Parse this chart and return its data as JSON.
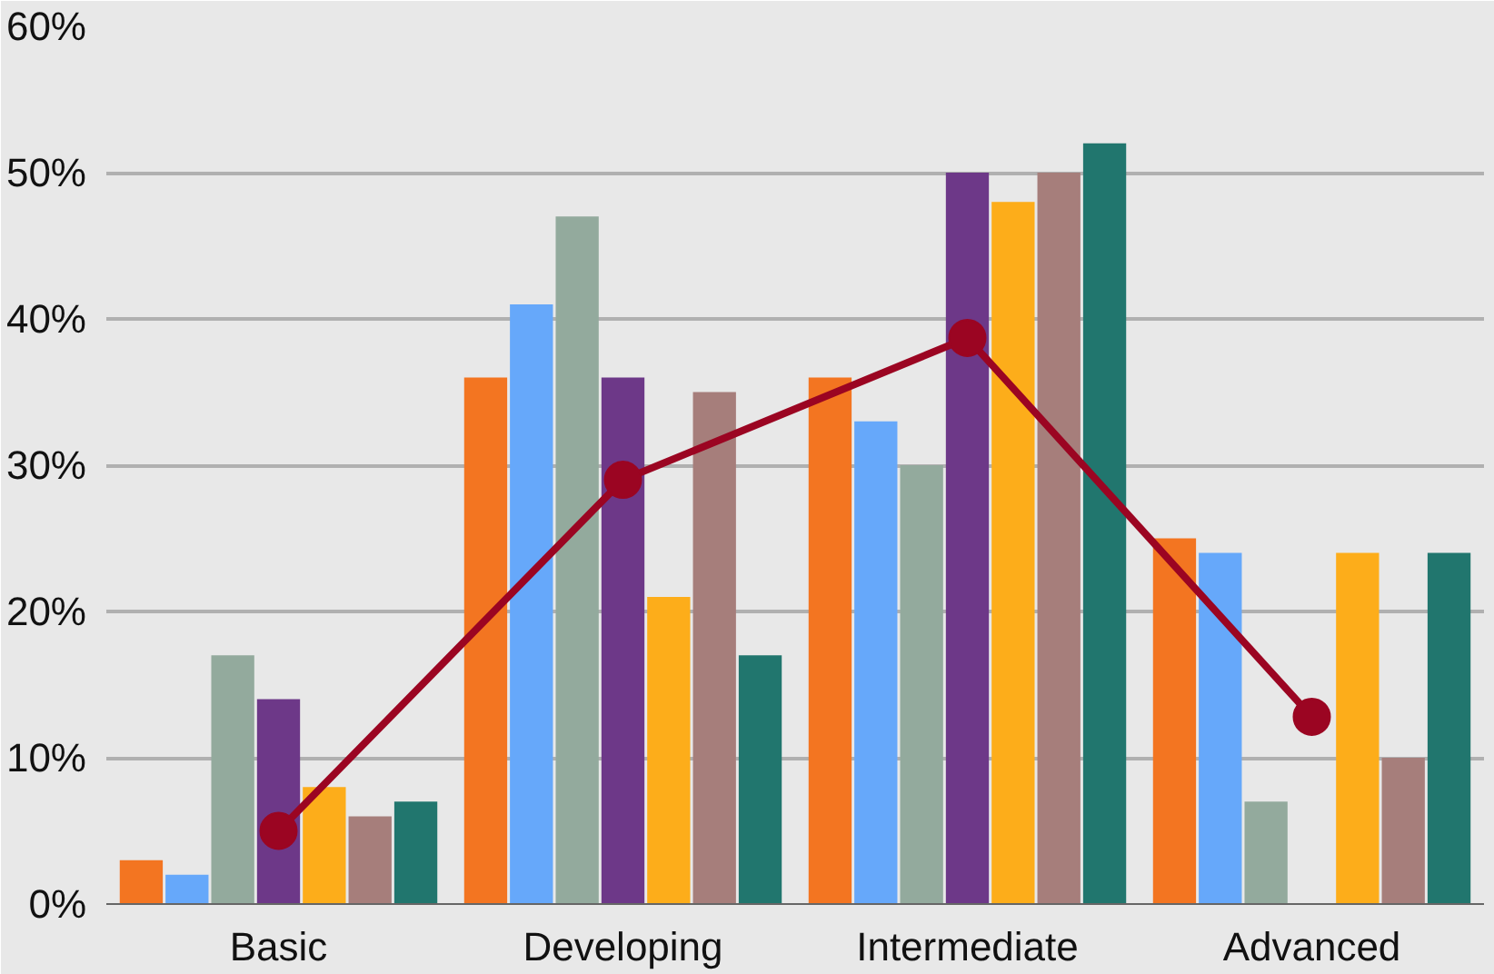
{
  "chart_data": {
    "type": "bar",
    "categories": [
      "Basic",
      "Developing",
      "Intermediate",
      "Advanced"
    ],
    "series": [
      {
        "color": "#f37521",
        "values": [
          3,
          36,
          36,
          25
        ]
      },
      {
        "color": "#66a8fa",
        "values": [
          2,
          41,
          33,
          24
        ]
      },
      {
        "color": "#93aa9d",
        "values": [
          17,
          47,
          30,
          7
        ]
      },
      {
        "color": "#6d3888",
        "values": [
          14,
          36,
          50,
          0
        ]
      },
      {
        "color": "#fdad1a",
        "values": [
          8,
          21,
          48,
          24
        ]
      },
      {
        "color": "#a67e7b",
        "values": [
          6,
          35,
          50,
          10
        ]
      },
      {
        "color": "#21766e",
        "values": [
          7,
          17,
          52,
          24
        ]
      },
      {
        "type": "line",
        "color": "#9b0522",
        "marker": "circle",
        "values": [
          5,
          29,
          38.7,
          12.8
        ]
      }
    ],
    "ylim": [
      0,
      60
    ],
    "yticks": [
      {
        "value": 0,
        "label": "0%"
      },
      {
        "value": 10,
        "label": "10%"
      },
      {
        "value": 20,
        "label": "20%"
      },
      {
        "value": 30,
        "label": "30%"
      },
      {
        "value": 40,
        "label": "40%"
      },
      {
        "value": 50,
        "label": "50%"
      },
      {
        "value": 60,
        "label": "60%"
      }
    ],
    "grid": "y"
  }
}
